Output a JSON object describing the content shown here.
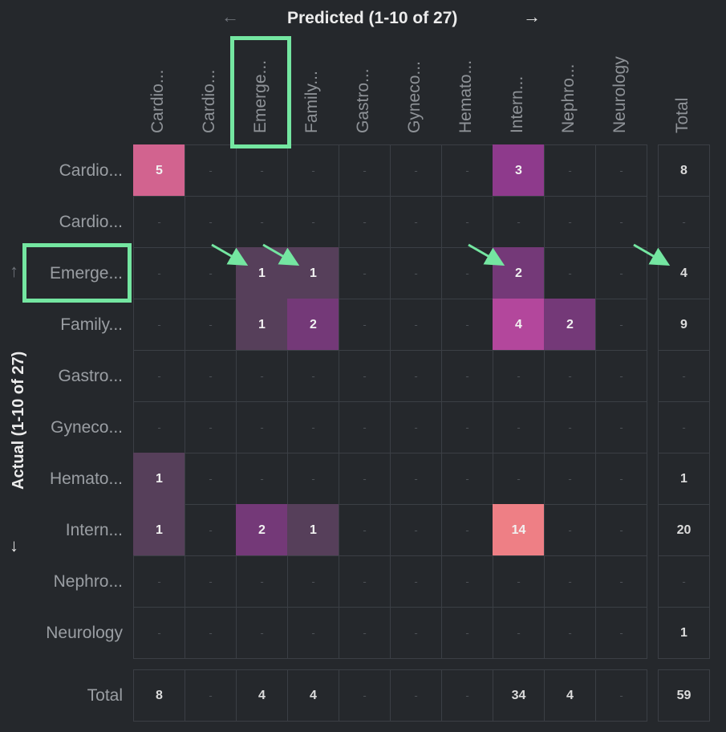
{
  "header": {
    "title": "Predicted (1-10 of 27)",
    "prev_icon": "arrow-left-icon",
    "prev_glyph": "←",
    "next_icon": "arrow-right-icon",
    "next_glyph": "→"
  },
  "side": {
    "title": "Actual (1-10 of 27)",
    "up_icon": "arrow-up-icon",
    "up_glyph": "↑",
    "down_icon": "arrow-down-icon",
    "down_glyph": "↓"
  },
  "columns": [
    "Cardio...",
    "Cardio...",
    "Emerge...",
    "Family...",
    "Gastro...",
    "Gyneco...",
    "Hemato...",
    "Intern...",
    "Nephro...",
    "Neurology"
  ],
  "rows": [
    "Cardio...",
    "Cardio...",
    "Emerge...",
    "Family...",
    "Gastro...",
    "Gyneco...",
    "Hemato...",
    "Intern...",
    "Nephro...",
    "Neurology"
  ],
  "total_label": "Total",
  "empty_value": "-",
  "matrix": [
    [
      5,
      null,
      null,
      null,
      null,
      null,
      null,
      3,
      null,
      null
    ],
    [
      null,
      null,
      null,
      null,
      null,
      null,
      null,
      null,
      null,
      null
    ],
    [
      null,
      null,
      1,
      1,
      null,
      null,
      null,
      2,
      null,
      null
    ],
    [
      null,
      null,
      1,
      2,
      null,
      null,
      null,
      4,
      2,
      null
    ],
    [
      null,
      null,
      null,
      null,
      null,
      null,
      null,
      null,
      null,
      null
    ],
    [
      null,
      null,
      null,
      null,
      null,
      null,
      null,
      null,
      null,
      null
    ],
    [
      1,
      null,
      null,
      null,
      null,
      null,
      null,
      null,
      null,
      null
    ],
    [
      1,
      null,
      2,
      1,
      null,
      null,
      null,
      14,
      null,
      null
    ],
    [
      null,
      null,
      null,
      null,
      null,
      null,
      null,
      null,
      null,
      null
    ],
    [
      null,
      null,
      null,
      null,
      null,
      null,
      null,
      null,
      null,
      null
    ]
  ],
  "row_totals": [
    8,
    null,
    4,
    9,
    null,
    null,
    1,
    20,
    null,
    1
  ],
  "column_totals": [
    8,
    null,
    4,
    4,
    null,
    null,
    null,
    34,
    4,
    null
  ],
  "grand_total": 59,
  "colors": {
    "background": "#25282c",
    "grid_line": "#3b3f45",
    "highlight": "#74e6a1",
    "value_1": "#563f5a",
    "value_2": "#743978",
    "value_3": "#8e3a8c",
    "value_4": "#b3479c",
    "value_5": "#d2638f",
    "value_14": "#ee7f85"
  },
  "highlighted_column": "Emerge...",
  "highlighted_row": "Emerge...",
  "annotation_icon": "pointer-arrow-icon"
}
